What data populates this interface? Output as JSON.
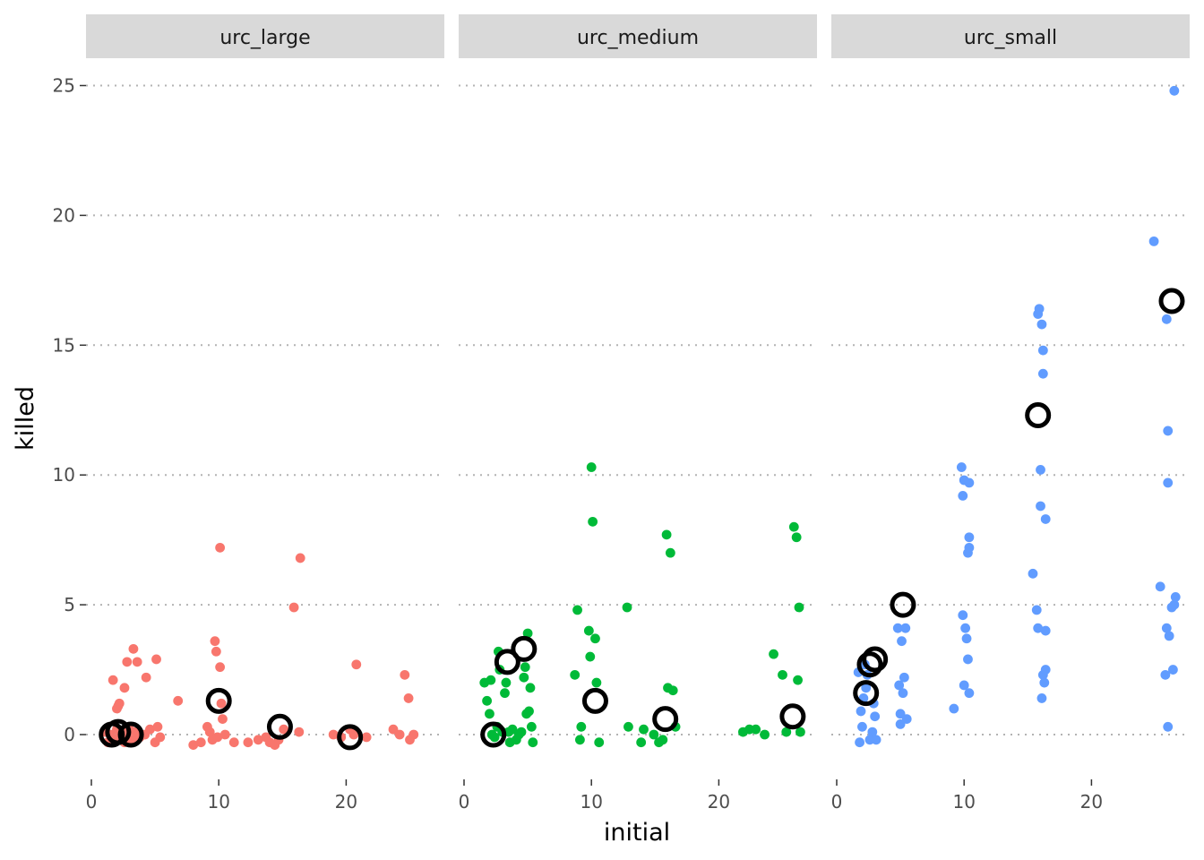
{
  "chart_data": {
    "type": "scatter",
    "xlabel": "initial",
    "ylabel": "killed",
    "ylim": [
      -1.8,
      26
    ],
    "yticks": [
      0,
      5,
      10,
      15,
      20,
      25
    ],
    "xticks": [
      0,
      10,
      20
    ],
    "grid": "horizontal dotted at y ticks",
    "panels": [
      {
        "name": "urc_large",
        "color": "#F8766D",
        "xlim": [
          0,
          27
        ],
        "points": [
          [
            1.1,
            0.1
          ],
          [
            1.3,
            -0.3
          ],
          [
            1.5,
            0.0
          ],
          [
            1.7,
            -0.2
          ],
          [
            2.0,
            0.2
          ],
          [
            2.2,
            -0.1
          ],
          [
            2.4,
            0.1
          ],
          [
            2.6,
            -0.3
          ],
          [
            2.8,
            0.0
          ],
          [
            3.0,
            0.2
          ],
          [
            3.2,
            -0.2
          ],
          [
            3.5,
            0.1
          ],
          [
            3.8,
            -0.1
          ],
          [
            4.2,
            0.0
          ],
          [
            4.6,
            0.2
          ],
          [
            5.0,
            -0.3
          ],
          [
            5.2,
            0.3
          ],
          [
            5.4,
            -0.1
          ],
          [
            1.7,
            2.1
          ],
          [
            2.0,
            1.0
          ],
          [
            2.1,
            1.1
          ],
          [
            2.2,
            1.2
          ],
          [
            2.6,
            1.8
          ],
          [
            2.8,
            2.8
          ],
          [
            3.3,
            3.3
          ],
          [
            3.6,
            2.8
          ],
          [
            4.3,
            2.2
          ],
          [
            5.1,
            2.9
          ],
          [
            6.8,
            1.3
          ],
          [
            8.0,
            -0.4
          ],
          [
            8.6,
            -0.3
          ],
          [
            9.1,
            0.3
          ],
          [
            9.3,
            0.1
          ],
          [
            9.5,
            -0.2
          ],
          [
            9.7,
            3.6
          ],
          [
            9.8,
            3.2
          ],
          [
            9.9,
            -0.1
          ],
          [
            10.1,
            7.2
          ],
          [
            10.1,
            2.6
          ],
          [
            10.2,
            1.2
          ],
          [
            10.3,
            0.6
          ],
          [
            10.5,
            0.0
          ],
          [
            11.2,
            -0.3
          ],
          [
            12.3,
            -0.3
          ],
          [
            13.1,
            -0.2
          ],
          [
            13.7,
            -0.1
          ],
          [
            14.0,
            -0.3
          ],
          [
            14.4,
            -0.4
          ],
          [
            14.7,
            -0.2
          ],
          [
            15.1,
            0.2
          ],
          [
            15.9,
            4.9
          ],
          [
            16.3,
            0.1
          ],
          [
            16.4,
            6.8
          ],
          [
            19.0,
            0.0
          ],
          [
            19.6,
            -0.1
          ],
          [
            20.3,
            0.2
          ],
          [
            20.6,
            0.0
          ],
          [
            20.8,
            2.7
          ],
          [
            21.6,
            -0.1
          ],
          [
            23.7,
            0.2
          ],
          [
            24.2,
            0.0
          ],
          [
            24.6,
            2.3
          ],
          [
            24.9,
            1.4
          ],
          [
            25.0,
            -0.2
          ],
          [
            25.3,
            0.0
          ]
        ],
        "means": [
          [
            1.6,
            0.0
          ],
          [
            2.1,
            0.1
          ],
          [
            3.1,
            0.0
          ],
          [
            10.0,
            1.3
          ],
          [
            14.8,
            0.3
          ],
          [
            20.3,
            -0.1
          ]
        ]
      },
      {
        "name": "urc_medium",
        "color": "#00BA38",
        "xlim": [
          0,
          27
        ],
        "points": [
          [
            1.6,
            2.0
          ],
          [
            1.8,
            1.3
          ],
          [
            2.0,
            0.8
          ],
          [
            2.1,
            2.1
          ],
          [
            2.2,
            0.0
          ],
          [
            2.4,
            -0.1
          ],
          [
            2.6,
            0.3
          ],
          [
            2.7,
            3.2
          ],
          [
            2.8,
            2.5
          ],
          [
            3.0,
            0.1
          ],
          [
            3.2,
            1.6
          ],
          [
            3.3,
            2.0
          ],
          [
            3.5,
            0.1
          ],
          [
            3.6,
            -0.3
          ],
          [
            3.8,
            0.2
          ],
          [
            4.1,
            -0.2
          ],
          [
            4.3,
            0.0
          ],
          [
            4.5,
            0.1
          ],
          [
            4.7,
            2.2
          ],
          [
            4.8,
            2.6
          ],
          [
            4.9,
            0.8
          ],
          [
            5.0,
            3.9
          ],
          [
            5.1,
            0.9
          ],
          [
            5.2,
            1.8
          ],
          [
            5.3,
            0.3
          ],
          [
            5.4,
            -0.3
          ],
          [
            8.7,
            2.3
          ],
          [
            8.9,
            4.8
          ],
          [
            9.1,
            -0.2
          ],
          [
            9.2,
            0.3
          ],
          [
            9.8,
            4.0
          ],
          [
            9.9,
            3.0
          ],
          [
            10.0,
            10.3
          ],
          [
            10.1,
            8.2
          ],
          [
            10.3,
            3.7
          ],
          [
            10.4,
            2.0
          ],
          [
            10.6,
            -0.3
          ],
          [
            12.8,
            4.9
          ],
          [
            12.9,
            0.3
          ],
          [
            13.9,
            -0.3
          ],
          [
            14.1,
            0.2
          ],
          [
            14.9,
            0.0
          ],
          [
            15.3,
            -0.3
          ],
          [
            15.6,
            -0.2
          ],
          [
            15.9,
            7.7
          ],
          [
            16.0,
            1.8
          ],
          [
            16.2,
            7.0
          ],
          [
            16.4,
            1.7
          ],
          [
            16.6,
            0.3
          ],
          [
            21.9,
            0.1
          ],
          [
            22.4,
            0.2
          ],
          [
            22.9,
            0.2
          ],
          [
            23.6,
            0.0
          ],
          [
            24.3,
            3.1
          ],
          [
            25.0,
            2.3
          ],
          [
            25.3,
            0.1
          ],
          [
            25.9,
            8.0
          ],
          [
            26.1,
            7.6
          ],
          [
            26.2,
            2.1
          ],
          [
            26.3,
            4.9
          ],
          [
            26.4,
            0.1
          ]
        ],
        "means": [
          [
            2.3,
            0.0
          ],
          [
            3.4,
            2.8
          ],
          [
            4.7,
            3.3
          ],
          [
            10.3,
            1.3
          ],
          [
            15.8,
            0.6
          ],
          [
            25.8,
            0.7
          ]
        ]
      },
      {
        "name": "urc_small",
        "color": "#619CFF",
        "xlim": [
          0,
          27
        ],
        "points": [
          [
            1.7,
            2.4
          ],
          [
            1.8,
            -0.3
          ],
          [
            1.9,
            0.9
          ],
          [
            2.0,
            0.3
          ],
          [
            2.1,
            1.4
          ],
          [
            2.2,
            2.7
          ],
          [
            2.3,
            1.8
          ],
          [
            2.4,
            2.3
          ],
          [
            2.6,
            -0.2
          ],
          [
            2.8,
            0.1
          ],
          [
            2.9,
            1.2
          ],
          [
            3.0,
            0.7
          ],
          [
            3.1,
            -0.2
          ],
          [
            4.8,
            4.1
          ],
          [
            4.9,
            1.9
          ],
          [
            5.0,
            0.8
          ],
          [
            5.1,
            3.6
          ],
          [
            5.2,
            1.6
          ],
          [
            5.3,
            2.2
          ],
          [
            5.4,
            4.1
          ],
          [
            5.5,
            0.6
          ],
          [
            5.0,
            0.4
          ],
          [
            9.2,
            1.0
          ],
          [
            9.8,
            10.3
          ],
          [
            9.9,
            4.6
          ],
          [
            9.9,
            9.2
          ],
          [
            10.0,
            9.8
          ],
          [
            10.0,
            1.9
          ],
          [
            10.1,
            4.1
          ],
          [
            10.2,
            3.7
          ],
          [
            10.3,
            2.9
          ],
          [
            10.3,
            7.0
          ],
          [
            10.4,
            9.7
          ],
          [
            10.4,
            7.6
          ],
          [
            10.4,
            7.2
          ],
          [
            10.4,
            1.6
          ],
          [
            15.4,
            6.2
          ],
          [
            15.7,
            4.8
          ],
          [
            15.8,
            16.2
          ],
          [
            15.8,
            4.1
          ],
          [
            15.9,
            16.4
          ],
          [
            16.0,
            8.8
          ],
          [
            16.0,
            10.2
          ],
          [
            16.1,
            15.8
          ],
          [
            16.1,
            1.4
          ],
          [
            16.2,
            13.9
          ],
          [
            16.2,
            14.8
          ],
          [
            16.2,
            2.3
          ],
          [
            16.3,
            2.0
          ],
          [
            16.4,
            4.0
          ],
          [
            16.4,
            8.3
          ],
          [
            16.4,
            2.5
          ],
          [
            24.9,
            19.0
          ],
          [
            25.4,
            5.7
          ],
          [
            25.8,
            2.3
          ],
          [
            25.9,
            4.1
          ],
          [
            25.9,
            16.0
          ],
          [
            26.0,
            11.7
          ],
          [
            26.0,
            9.7
          ],
          [
            26.1,
            3.8
          ],
          [
            26.0,
            0.3
          ],
          [
            26.3,
            4.9
          ],
          [
            26.4,
            2.5
          ],
          [
            26.5,
            24.8
          ],
          [
            26.5,
            5.0
          ],
          [
            26.6,
            5.3
          ]
        ],
        "means": [
          [
            2.3,
            1.6
          ],
          [
            2.6,
            2.7
          ],
          [
            3.0,
            2.9
          ],
          [
            5.2,
            5.0
          ],
          [
            15.8,
            12.3
          ],
          [
            26.3,
            16.7
          ]
        ]
      }
    ]
  }
}
